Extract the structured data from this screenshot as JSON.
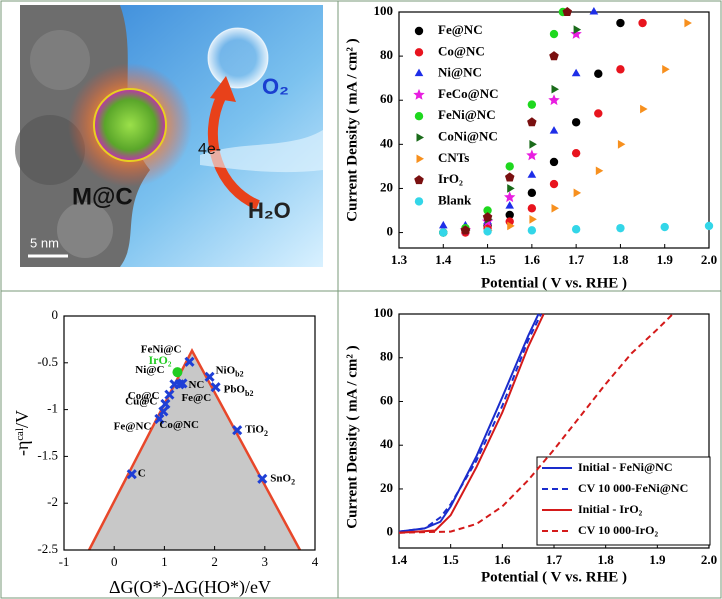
{
  "image_panel": {
    "material": "M@C",
    "product": "O₂",
    "reactant": "H₂O",
    "electrons": "4e-",
    "scale_bar": "5 nm"
  },
  "chart_data": [
    {
      "type": "line",
      "xlabel": "Potential ( V vs. RHE )",
      "ylabel": "Current Density ( mA / cm² )",
      "xlim": [
        1.3,
        2.0
      ],
      "ylim": [
        -7,
        100
      ],
      "xticks": [
        1.3,
        1.4,
        1.5,
        1.6,
        1.7,
        1.8,
        1.9,
        {
          "value": 2,
          "label": "2.0"
        }
      ],
      "yticks": [
        0,
        20,
        40,
        60,
        80,
        100
      ],
      "series": [
        {
          "name": "Fe@NC",
          "color": "#000000",
          "marker": "circle",
          "x": [
            1.4,
            1.45,
            1.5,
            1.55,
            1.6,
            1.65,
            1.7,
            1.75,
            1.8
          ],
          "values": [
            0,
            1,
            3,
            8,
            18,
            32,
            50,
            72,
            95
          ]
        },
        {
          "name": "Co@NC",
          "color": "#e8141e",
          "marker": "circle",
          "x": [
            1.45,
            1.5,
            1.55,
            1.6,
            1.65,
            1.7,
            1.75,
            1.8,
            1.85
          ],
          "values": [
            0,
            2,
            5,
            11,
            22,
            36,
            54,
            74,
            95
          ]
        },
        {
          "name": "Ni@NC",
          "color": "#1e2ee8",
          "marker": "triangle",
          "x": [
            1.4,
            1.45,
            1.5,
            1.55,
            1.6,
            1.65,
            1.7,
            1.74
          ],
          "values": [
            3,
            3,
            5,
            12,
            26,
            46,
            72,
            100
          ]
        },
        {
          "name": "FeCo@NC",
          "color": "#e81ee0",
          "marker": "star",
          "x": [
            1.45,
            1.5,
            1.55,
            1.6,
            1.65,
            1.7
          ],
          "values": [
            1,
            5,
            16,
            35,
            60,
            90
          ]
        },
        {
          "name": "FeNi@NC",
          "color": "#1ed81e",
          "marker": "circle",
          "x": [
            1.4,
            1.45,
            1.5,
            1.55,
            1.6,
            1.65,
            1.67
          ],
          "values": [
            0,
            2,
            10,
            30,
            58,
            90,
            100
          ]
        },
        {
          "name": "CoNi@NC",
          "color": "#1a6b1a",
          "marker": "triangle-right",
          "x": [
            1.45,
            1.5,
            1.55,
            1.6,
            1.65,
            1.7
          ],
          "values": [
            1,
            6,
            20,
            40,
            65,
            92
          ]
        },
        {
          "name": "CNTs",
          "color": "#f7901e",
          "marker": "triangle-right",
          "x": [
            1.5,
            1.55,
            1.6,
            1.65,
            1.7,
            1.75,
            1.8,
            1.85,
            1.9,
            1.95
          ],
          "values": [
            1,
            3,
            6,
            11,
            18,
            28,
            40,
            56,
            74,
            95
          ]
        },
        {
          "name": "IrO₂",
          "color": "#7a1010",
          "marker": "pentagon",
          "x": [
            1.45,
            1.5,
            1.55,
            1.6,
            1.65,
            1.68
          ],
          "values": [
            1,
            7,
            25,
            50,
            80,
            100
          ]
        },
        {
          "name": "Blank",
          "color": "#33d6e8",
          "marker": "circle",
          "x": [
            1.4,
            1.5,
            1.6,
            1.7,
            1.8,
            1.9,
            2.0
          ],
          "values": [
            0,
            0.5,
            1,
            1.5,
            2,
            2.5,
            3
          ]
        }
      ]
    },
    {
      "type": "scatter",
      "xlabel": "ΔG(O*)-ΔG(HO*)/eV",
      "ylabel": "-ηᶜᵃˡ/V",
      "xlim": [
        -1,
        4
      ],
      "ylim": [
        -2.5,
        0
      ],
      "xticks": [
        -1,
        0,
        1,
        2,
        3,
        4
      ],
      "yticks": [
        -2.5,
        -2,
        -1.5,
        -1,
        -0.5,
        0
      ],
      "volcano": {
        "x": [
          -0.5,
          1.55,
          3.7
        ],
        "values": [
          -2.5,
          -0.37,
          -2.5
        ],
        "color": "#e8472a",
        "fill": "#c8c8c8"
      },
      "marker_color": "#1f3fd6",
      "points": [
        {
          "label": "C",
          "x": 0.35,
          "y": -1.69
        },
        {
          "label": "Fe@NC",
          "x": 0.9,
          "y": -1.1
        },
        {
          "label": "Co@NC",
          "x": 0.98,
          "y": -1.02
        },
        {
          "label": "Cu@C",
          "x": 1.02,
          "y": -0.94
        },
        {
          "label": "Co@C",
          "x": 1.1,
          "y": -0.84
        },
        {
          "label": "Ni@C",
          "x": 1.2,
          "y": -0.73
        },
        {
          "label": "Fe@C",
          "x": 1.3,
          "y": -0.73
        },
        {
          "label": "NC",
          "x": 1.36,
          "y": -0.72
        },
        {
          "label": "FeNi@C",
          "x": 1.5,
          "y": -0.49
        },
        {
          "label": "NiO",
          "sub": "b2",
          "x": 1.9,
          "y": -0.65
        },
        {
          "label": "PbO",
          "sub": "b2",
          "x": 2.02,
          "y": -0.76
        },
        {
          "label": "TiO",
          "sub": "2",
          "x": 2.45,
          "y": -1.22
        },
        {
          "label": "SnO",
          "sub": "2",
          "x": 2.95,
          "y": -1.74
        }
      ],
      "highlight": {
        "label": "IrO₂",
        "x": 1.26,
        "y": -0.6,
        "color": "#22cc22"
      }
    },
    {
      "type": "line",
      "xlabel": "Potential ( V vs. RHE )",
      "ylabel": "Current Density ( mA / cm² )",
      "xlim": [
        1.4,
        2.0
      ],
      "ylim": [
        -7,
        100
      ],
      "xticks": [
        1.4,
        1.5,
        1.6,
        1.7,
        1.8,
        1.9,
        {
          "value": 2,
          "label": "2.0"
        }
      ],
      "yticks": [
        0,
        20,
        40,
        60,
        80,
        100
      ],
      "series": [
        {
          "name": "Initial - FeNi@NC",
          "color": "#1a2ccc",
          "dash": false,
          "x": [
            1.4,
            1.45,
            1.48,
            1.5,
            1.55,
            1.6,
            1.65,
            1.67
          ],
          "values": [
            0.5,
            2,
            5,
            12,
            35,
            62,
            90,
            100
          ]
        },
        {
          "name": "CV 10 000-FeNi@NC",
          "color": "#1a2ccc",
          "dash": true,
          "x": [
            1.4,
            1.45,
            1.48,
            1.5,
            1.55,
            1.6,
            1.65,
            1.675
          ],
          "values": [
            0.5,
            2,
            7,
            13,
            33,
            58,
            88,
            100
          ]
        },
        {
          "name": "Initial - IrO₂",
          "color": "#d41a1a",
          "dash": false,
          "x": [
            1.4,
            1.47,
            1.5,
            1.55,
            1.6,
            1.65,
            1.68
          ],
          "values": [
            0,
            1,
            8,
            30,
            55,
            85,
            100
          ]
        },
        {
          "name": "CV 10 000-IrO₂",
          "color": "#d41a1a",
          "dash": true,
          "x": [
            1.4,
            1.5,
            1.55,
            1.6,
            1.65,
            1.7,
            1.75,
            1.8,
            1.85,
            1.9,
            1.93
          ],
          "values": [
            0,
            0.5,
            4,
            12,
            24,
            38,
            53,
            68,
            82,
            93,
            100
          ]
        }
      ]
    }
  ]
}
